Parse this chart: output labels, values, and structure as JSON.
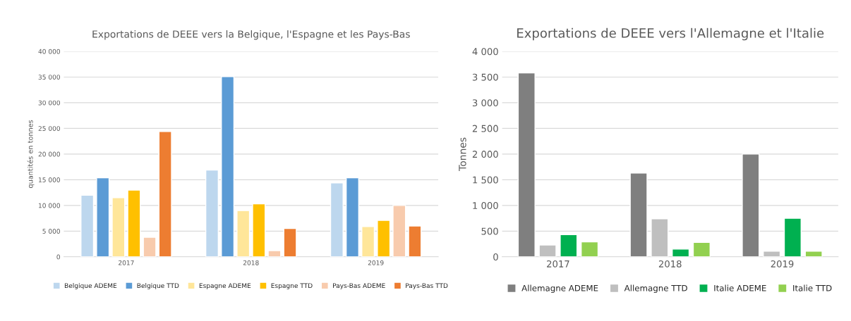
{
  "chart_data": [
    {
      "type": "bar",
      "title": "Exportations de DEEE vers la Belgique, l'Espagne et les Pays-Bas",
      "ylabel": "quantités en tonnes",
      "categories": [
        "2017",
        "2018",
        "2019"
      ],
      "series": [
        {
          "name": "Belgique ADEME",
          "color": "#bdd7ee",
          "values": [
            12000,
            16900,
            14400
          ]
        },
        {
          "name": "Belgique TTD",
          "color": "#5b9bd5",
          "values": [
            15400,
            35100,
            15400
          ]
        },
        {
          "name": "Espagne ADEME",
          "color": "#ffe699",
          "values": [
            11500,
            9000,
            5900
          ]
        },
        {
          "name": "Espagne TTD",
          "color": "#ffc000",
          "values": [
            13000,
            10300,
            7100
          ]
        },
        {
          "name": "Pays-Bas ADEME",
          "color": "#f8cbad",
          "values": [
            3800,
            1200,
            10000
          ]
        },
        {
          "name": "Pays-Bas TTD",
          "color": "#ed7d31",
          "values": [
            24400,
            5500,
            6000
          ]
        }
      ],
      "ylim": [
        0,
        40000
      ],
      "yticks": [
        0,
        {
          "value": 5000,
          "label": "5 000"
        },
        {
          "value": 10000,
          "label": "10 000"
        },
        {
          "value": 15000,
          "label": "15 000"
        },
        {
          "value": 20000,
          "label": "20 000"
        },
        {
          "value": 25000,
          "label": "25 000"
        },
        {
          "value": 30000,
          "label": "30 000"
        },
        {
          "value": 35000,
          "label": "35 000"
        },
        {
          "value": 40000,
          "label": "40 000"
        }
      ],
      "grid": "y",
      "legend": "bottom"
    },
    {
      "type": "bar",
      "title": "Exportations de DEEE vers l'Allemagne et l'Italie",
      "ylabel": "Tonnes",
      "categories": [
        "2017",
        "2018",
        "2019"
      ],
      "series": [
        {
          "name": "Allemagne ADEME",
          "color": "#7f7f7f",
          "values": [
            3580,
            1630,
            2000
          ]
        },
        {
          "name": "Allemagne TTD",
          "color": "#bfbfbf",
          "values": [
            230,
            740,
            110
          ]
        },
        {
          "name": "Italie ADEME",
          "color": "#00b050",
          "values": [
            430,
            150,
            750
          ]
        },
        {
          "name": "Italie TTD",
          "color": "#92d050",
          "values": [
            290,
            280,
            110
          ]
        }
      ],
      "ylim": [
        0,
        4000
      ],
      "yticks": [
        0,
        500,
        {
          "value": 1000,
          "label": "1 000"
        },
        {
          "value": 1500,
          "label": "1 500"
        },
        {
          "value": 2000,
          "label": "2 000"
        },
        {
          "value": 2500,
          "label": "2 500"
        },
        {
          "value": 3000,
          "label": "3 000"
        },
        {
          "value": 3500,
          "label": "3 500"
        },
        {
          "value": 4000,
          "label": "4 000"
        }
      ],
      "grid": "y",
      "legend": "bottom"
    }
  ]
}
